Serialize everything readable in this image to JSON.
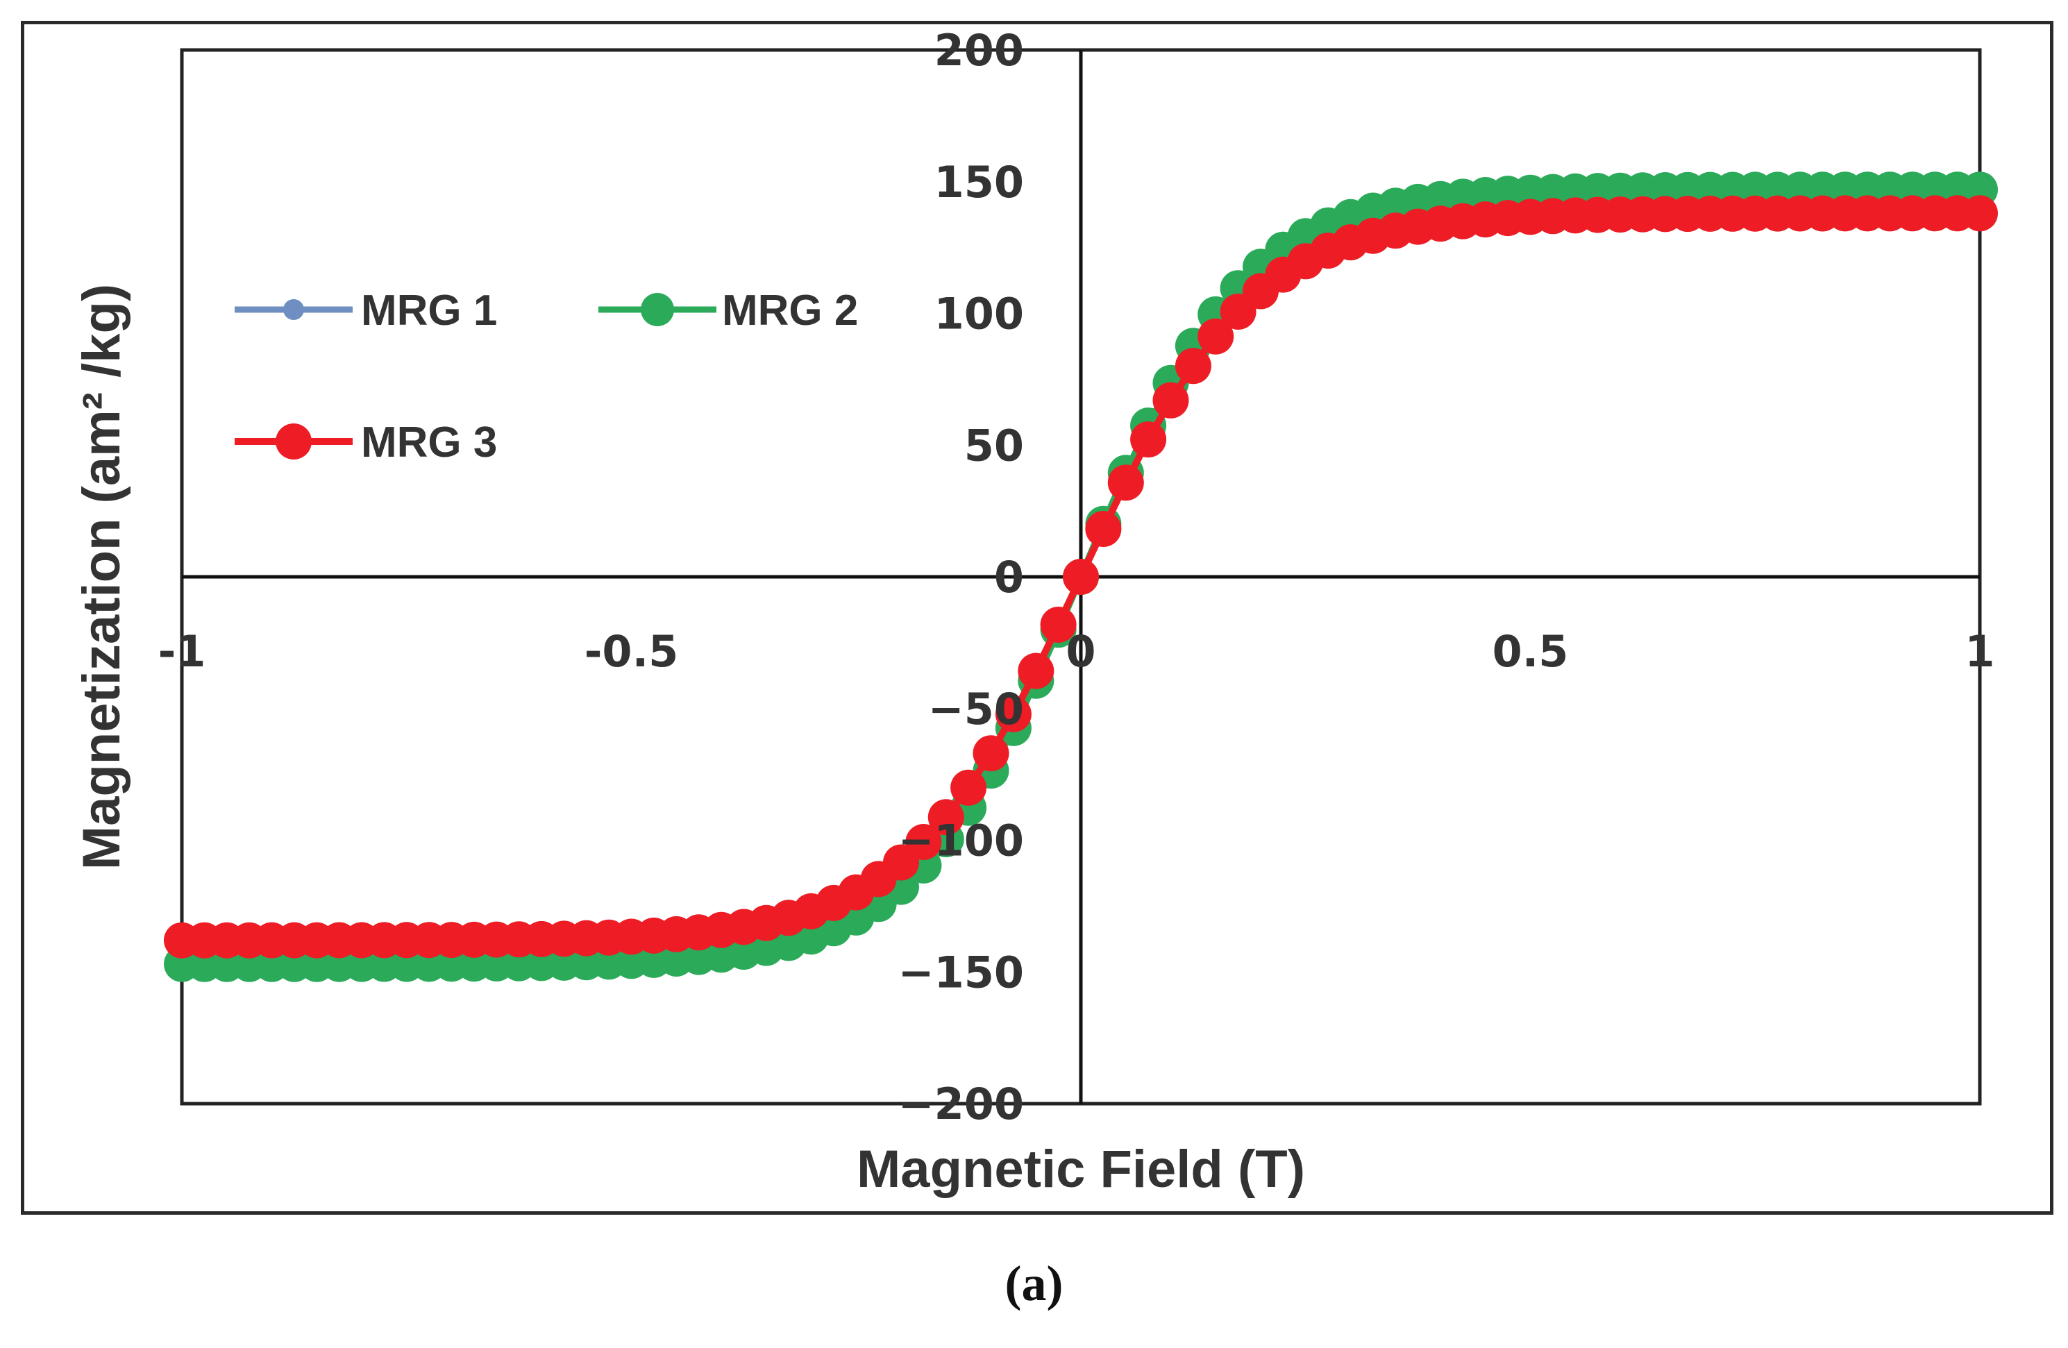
{
  "caption": "(a)",
  "chart_data": {
    "type": "scatter",
    "title": "",
    "xlabel": "Magnetic Field (T)",
    "ylabel": "Magnetization (am² /kg)",
    "xlim": [
      -1,
      1
    ],
    "ylim": [
      -200,
      200
    ],
    "xticks": [
      -1,
      -0.5,
      0,
      0.5,
      1
    ],
    "yticks": [
      200,
      150,
      100,
      50,
      0,
      -50,
      -100,
      -150,
      -200
    ],
    "grid": false,
    "legend_position": "top-left",
    "model": "saturation-tanh",
    "n_points": 81,
    "series": [
      {
        "name": "MRG 1",
        "color": "#6f8ec2",
        "ms": 138,
        "k": 5.3
      },
      {
        "name": "MRG 2",
        "color": "#2bab5a",
        "ms": 147,
        "k": 5.5
      },
      {
        "name": "MRG 3",
        "color": "#ee1c24",
        "ms": 138,
        "k": 5.3
      }
    ]
  }
}
